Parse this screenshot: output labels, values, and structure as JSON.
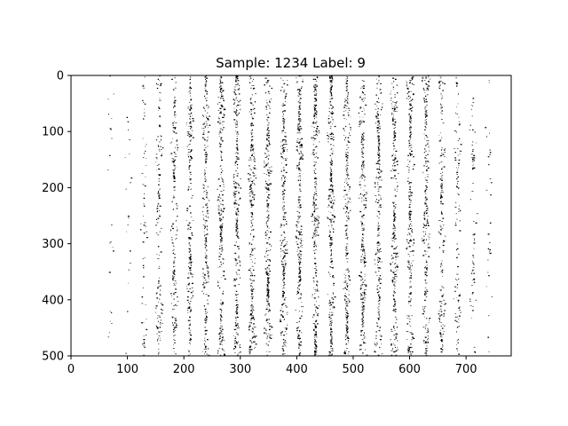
{
  "chart_data": {
    "type": "heatmap",
    "title": "Sample: 1234  Label: 9",
    "xlabel": "",
    "ylabel": "",
    "xlim": [
      0,
      780
    ],
    "ylim": [
      500,
      0
    ],
    "x_ticks": [
      "0",
      "100",
      "200",
      "300",
      "400",
      "500",
      "600",
      "700"
    ],
    "y_ticks": [
      "0",
      "100",
      "200",
      "300",
      "400",
      "500"
    ],
    "colormap": "binary",
    "grid": false,
    "stripe_centers": [
      70,
      100,
      128,
      155,
      182,
      210,
      238,
      265,
      293,
      320,
      348,
      376,
      404,
      432,
      460,
      488,
      516,
      544,
      572,
      600,
      628,
      656,
      684,
      712,
      740
    ],
    "stripe_density": [
      0.04,
      0.07,
      0.18,
      0.34,
      0.52,
      0.62,
      0.66,
      0.68,
      0.7,
      0.7,
      0.72,
      0.72,
      0.72,
      0.72,
      0.72,
      0.7,
      0.7,
      0.68,
      0.66,
      0.62,
      0.56,
      0.45,
      0.3,
      0.14,
      0.06
    ],
    "colors": {
      "ink": "#000000",
      "background": "#ffffff",
      "axis": "#000000"
    }
  }
}
